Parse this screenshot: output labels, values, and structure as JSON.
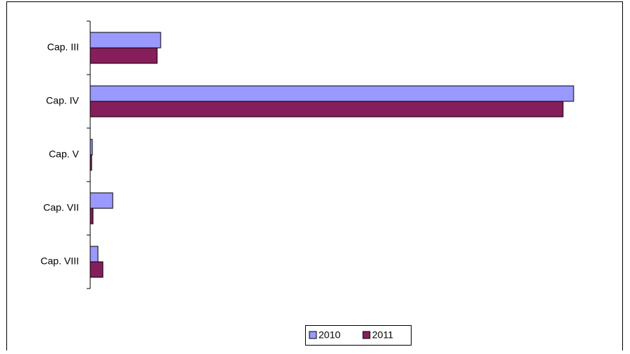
{
  "chart_data": {
    "type": "bar",
    "orientation": "horizontal",
    "categories": [
      "Cap. III",
      "Cap. IV",
      "Cap. V",
      "Cap. VII",
      "Cap. VIII"
    ],
    "series": [
      {
        "name": "2010",
        "color": "#9999ff",
        "values": [
          100,
          686,
          3,
          32,
          11
        ]
      },
      {
        "name": "2011",
        "color": "#861e5c",
        "values": [
          95,
          671,
          2,
          4,
          18
        ]
      }
    ],
    "xlim": [
      0,
      700
    ],
    "legend": "bottom"
  }
}
